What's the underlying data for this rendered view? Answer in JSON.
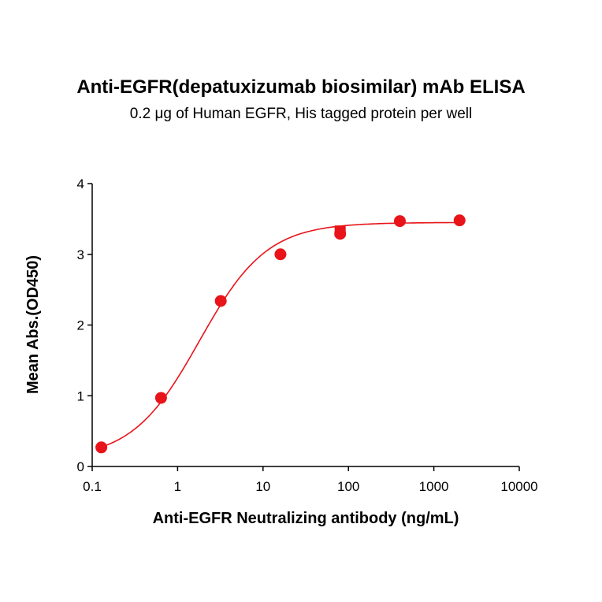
{
  "chart_data": {
    "type": "scatter",
    "title": "Anti-EGFR(depatuxizumab biosimilar) mAb ELISA",
    "subtitle": "0.2 μg of Human EGFR, His tagged protein per well",
    "xlabel": "Anti-EGFR Neutralizing antibody (ng/mL)",
    "ylabel": "Mean Abs.(OD450)",
    "xscale": "log",
    "xlim": [
      0.1,
      10000
    ],
    "ylim": [
      0,
      4
    ],
    "xticks": [
      "0.1",
      "1",
      "10",
      "100",
      "1000",
      "10000"
    ],
    "yticks": [
      "0",
      "1",
      "2",
      "3",
      "4"
    ],
    "grid": false,
    "color": "#e8141a",
    "points": {
      "x": [
        0.128,
        0.64,
        3.2,
        16,
        80,
        400,
        2000
      ],
      "y": [
        0.27,
        0.97,
        2.34,
        3.0,
        3.29,
        3.47,
        3.48
      ]
    },
    "square_points": {
      "x": [
        80
      ],
      "y": [
        3.33
      ]
    },
    "fit": {
      "model": "4PL",
      "bottom": 0.1,
      "top": 3.45,
      "ec50": 1.8,
      "hill": 1.1
    }
  }
}
